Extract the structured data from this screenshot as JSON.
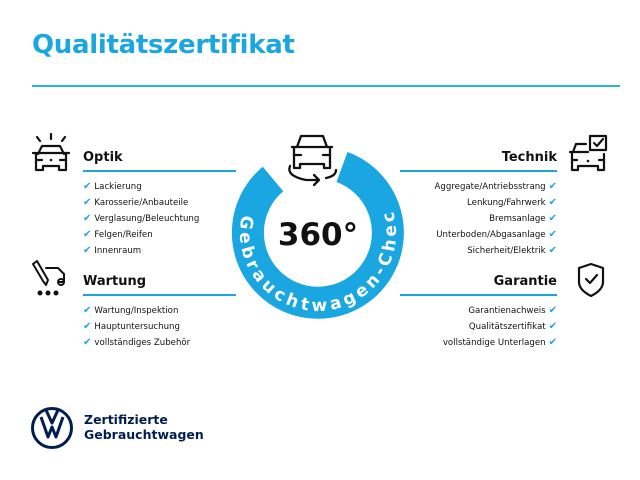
{
  "header": {
    "title": "Qualitätszertifikat"
  },
  "center": {
    "big_text": "360°",
    "arc_text": "Gebrauchtwagen-Check",
    "accent_color": "#1aa6e0",
    "icon": "car-rotate-icon"
  },
  "sections": {
    "optik": {
      "title": "Optik",
      "icon": "car-lights-icon",
      "items": [
        "Lackierung",
        "Karosserie/Anbauteile",
        "Verglasung/Beleuchtung",
        "Felgen/Reifen",
        "Innenraum"
      ]
    },
    "wartung": {
      "title": "Wartung",
      "icon": "service-wrench-car-icon",
      "items": [
        "Wartung/Inspektion",
        "Hauptuntersuchung",
        "vollständiges Zubehör"
      ]
    },
    "technik": {
      "title": "Technik",
      "icon": "car-checkbox-icon",
      "items": [
        "Aggregate/Antriebsstrang",
        "Lenkung/Fahrwerk",
        "Bremsanlage",
        "Unterboden/Abgasanlage",
        "Sicherheit/Elektrik"
      ]
    },
    "garantie": {
      "title": "Garantie",
      "icon": "shield-check-icon",
      "items": [
        "Garantienachweis",
        "Qualitätszertifikat",
        "vollständige Unterlagen"
      ]
    }
  },
  "checkmark": "✔",
  "footer": {
    "brand_line1": "Zertifizierte",
    "brand_line2": "Gebrauchtwagen",
    "logo": "vw-logo",
    "brand_color": "#001e50"
  }
}
